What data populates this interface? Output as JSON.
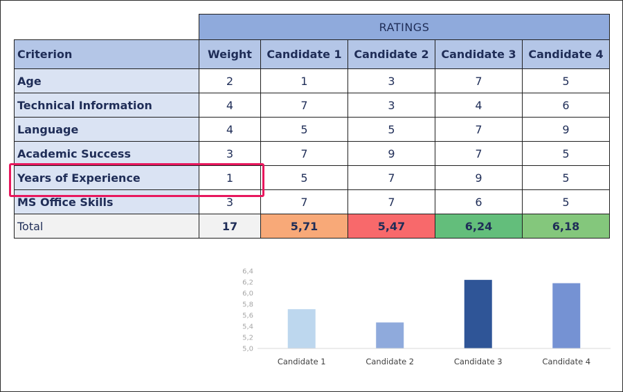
{
  "table": {
    "ratings_title": "RATINGS",
    "headers": [
      "Criterion",
      "Weight",
      "Candidate 1",
      "Candidate 2",
      "Candidate 3",
      "Candidate 4"
    ],
    "rows": [
      {
        "criterion": "Age",
        "weight": "2",
        "ratings": [
          "1",
          "3",
          "7",
          "5"
        ]
      },
      {
        "criterion": "Technical Information",
        "weight": "4",
        "ratings": [
          "7",
          "3",
          "4",
          "6"
        ]
      },
      {
        "criterion": "Language",
        "weight": "4",
        "ratings": [
          "5",
          "5",
          "7",
          "9"
        ]
      },
      {
        "criterion": "Academic Success",
        "weight": "3",
        "ratings": [
          "7",
          "9",
          "7",
          "5"
        ]
      },
      {
        "criterion": "Years of Experience",
        "weight": "1",
        "ratings": [
          "5",
          "7",
          "9",
          "5"
        ]
      },
      {
        "criterion": "MS Office Skills",
        "weight": "3",
        "ratings": [
          "7",
          "7",
          "6",
          "5"
        ]
      }
    ],
    "total": {
      "label": "Total",
      "weight": "17",
      "values": [
        "5,71",
        "5,47",
        "6,24",
        "6,18"
      ],
      "colors": [
        "#f8a978",
        "#f8696b",
        "#63be7b",
        "#84c77c"
      ]
    }
  },
  "chart_data": {
    "type": "bar",
    "categories": [
      "Candidate 1",
      "Candidate 2",
      "Candidate 3",
      "Candidate 4"
    ],
    "values": [
      5.71,
      5.47,
      6.24,
      6.18
    ],
    "ylim": [
      5.0,
      6.4
    ],
    "yticks": [
      "5,0",
      "5,2",
      "5,4",
      "5,6",
      "5,8",
      "6,0",
      "6,2",
      "6,4"
    ],
    "bar_colors": [
      "#bdd7ee",
      "#8faadc",
      "#2f5597",
      "#7592d3"
    ],
    "grid": false
  }
}
